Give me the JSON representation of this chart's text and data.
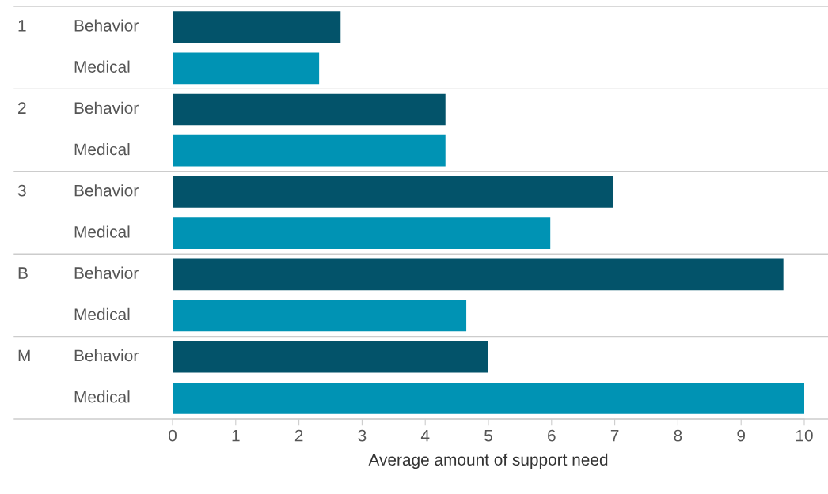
{
  "chart_data": {
    "type": "bar",
    "orientation": "horizontal",
    "xlabel": "Average amount of support need",
    "categories": [
      "1",
      "2",
      "3",
      "B",
      "M"
    ],
    "series": [
      {
        "name": "Behavior",
        "color": "#03536a",
        "values": [
          2.66,
          4.32,
          6.98,
          9.67,
          5.0
        ]
      },
      {
        "name": "Medical",
        "color": "#0093b4",
        "values": [
          2.32,
          4.32,
          5.98,
          4.65,
          10.0
        ]
      }
    ],
    "xlim": [
      0,
      10
    ],
    "xticks": [
      0,
      1,
      2,
      3,
      4,
      5,
      6,
      7,
      8,
      9,
      10
    ],
    "grid": false,
    "legend": false
  }
}
